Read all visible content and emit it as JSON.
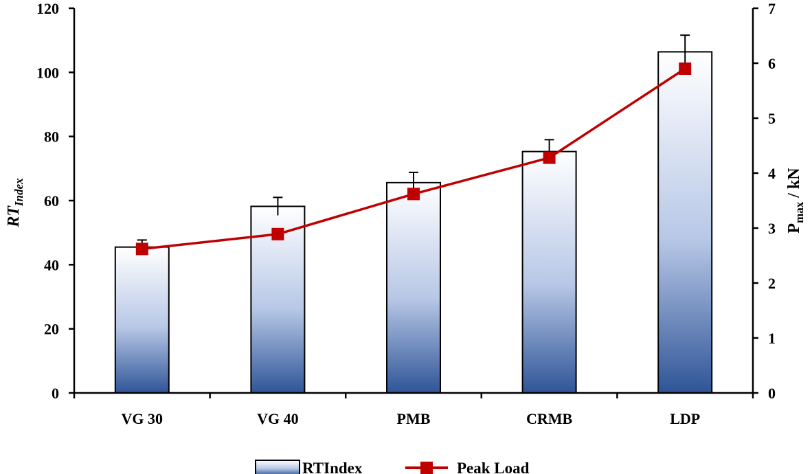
{
  "chart_data": {
    "type": "bar",
    "categories": [
      "VG 30",
      "VG 40",
      "PMB",
      "CRMB",
      "LDP"
    ],
    "series": [
      {
        "name": "RTIndex",
        "kind": "bar",
        "axis": "left",
        "values": [
          45.5,
          58.2,
          65.6,
          75.3,
          106.4
        ],
        "errors": [
          2.2,
          2.8,
          3.2,
          3.7,
          5.2
        ]
      },
      {
        "name": "Peak Load",
        "kind": "line",
        "axis": "right",
        "values": [
          2.62,
          2.89,
          3.62,
          4.28,
          5.9
        ],
        "color": "#c00000"
      }
    ],
    "ylabel": "RT",
    "ylabel_sub": "Index",
    "ylim": [
      0,
      120
    ],
    "yticks": [
      "0",
      "20",
      "40",
      "60",
      "80",
      "100",
      "120"
    ],
    "y2label": "P",
    "y2label_sub": "max",
    "y2label_suffix": " / kN",
    "y2lim": [
      0,
      7
    ],
    "y2ticks": [
      "0",
      "1",
      "2",
      "3",
      "4",
      "5",
      "6",
      "7"
    ],
    "legend": {
      "position": "bottom",
      "entries": [
        "RTIndex",
        "Peak Load"
      ]
    },
    "colors": {
      "bar_top": "#ffffff",
      "bar_bottom": "#2f5597",
      "line": "#c00000",
      "axis": "#000000"
    }
  }
}
